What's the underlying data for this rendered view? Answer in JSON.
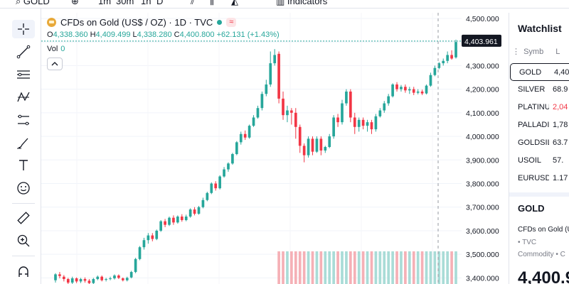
{
  "topbar": {
    "search": "GOLD",
    "intervals": [
      "1m",
      "30m",
      "1h",
      "D"
    ],
    "indicators": "Indicators"
  },
  "chart": {
    "title": "CFDs on Gold (US$ / OZ) · 1D · TVC",
    "open_label": "O",
    "open": "4,338.360",
    "high_label": "H",
    "high": "4,409.499",
    "low_label": "L",
    "low": "4,338.280",
    "close_label": "C",
    "close": "4,400.800",
    "change": "+62.131 (+1.43%)",
    "vol_label": "Vol",
    "vol_value": "0",
    "last_price_label": "4,403.961",
    "colors": {
      "up": "#26a69a",
      "down": "#f23645",
      "vol_up": "#a9dcd7",
      "vol_down": "#f5b0b6"
    }
  },
  "chart_data": {
    "type": "candlestick",
    "y_ticks": [
      "4,500.000",
      "4,400.000",
      "4,300.000",
      "4,200.000",
      "4,100.000",
      "4,000.000",
      "3,900.000",
      "3,800.000",
      "3,700.000",
      "3,600.000",
      "3,500.000",
      "3,400.000"
    ],
    "ylim": [
      3350,
      4530
    ],
    "last_price": 4403.961,
    "candles": [
      [
        3390,
        3415,
        3380,
        3420
      ],
      [
        3415,
        3408,
        3398,
        3425
      ],
      [
        3405,
        3395,
        3385,
        3412
      ],
      [
        3395,
        3380,
        3370,
        3400
      ],
      [
        3380,
        3398,
        3372,
        3405
      ],
      [
        3398,
        3385,
        3378,
        3402
      ],
      [
        3385,
        3395,
        3378,
        3400
      ],
      [
        3395,
        3388,
        3380,
        3402
      ],
      [
        3388,
        3378,
        3370,
        3395
      ],
      [
        3378,
        3395,
        3372,
        3400
      ],
      [
        3395,
        3405,
        3390,
        3410
      ],
      [
        3405,
        3390,
        3385,
        3410
      ],
      [
        3392,
        3395,
        3385,
        3400
      ],
      [
        3395,
        3398,
        3390,
        3405
      ],
      [
        3398,
        3410,
        3393,
        3415
      ],
      [
        3410,
        3400,
        3395,
        3415
      ],
      [
        3398,
        3390,
        3385,
        3402
      ],
      [
        3390,
        3400,
        3385,
        3405
      ],
      [
        3402,
        3425,
        3398,
        3430
      ],
      [
        3425,
        3480,
        3420,
        3485
      ],
      [
        3480,
        3530,
        3475,
        3535
      ],
      [
        3530,
        3560,
        3520,
        3570
      ],
      [
        3560,
        3580,
        3545,
        3590
      ],
      [
        3580,
        3565,
        3555,
        3590
      ],
      [
        3565,
        3600,
        3560,
        3605
      ],
      [
        3600,
        3640,
        3595,
        3645
      ],
      [
        3640,
        3625,
        3615,
        3650
      ],
      [
        3625,
        3655,
        3620,
        3660
      ],
      [
        3655,
        3635,
        3625,
        3665
      ],
      [
        3635,
        3660,
        3630,
        3665
      ],
      [
        3660,
        3645,
        3638,
        3670
      ],
      [
        3645,
        3660,
        3640,
        3668
      ],
      [
        3660,
        3690,
        3655,
        3695
      ],
      [
        3690,
        3672,
        3665,
        3700
      ],
      [
        3672,
        3700,
        3668,
        3705
      ],
      [
        3700,
        3730,
        3695,
        3740
      ],
      [
        3730,
        3760,
        3725,
        3765
      ],
      [
        3760,
        3800,
        3755,
        3805
      ],
      [
        3800,
        3780,
        3770,
        3810
      ],
      [
        3780,
        3830,
        3775,
        3835
      ],
      [
        3830,
        3860,
        3825,
        3870
      ],
      [
        3860,
        3885,
        3850,
        3890
      ],
      [
        3885,
        3925,
        3880,
        3930
      ],
      [
        3925,
        3975,
        3920,
        3980
      ],
      [
        3975,
        4010,
        3965,
        4020
      ],
      [
        4010,
        3995,
        3985,
        4025
      ],
      [
        3995,
        4045,
        3990,
        4050
      ],
      [
        4045,
        4080,
        4040,
        4090
      ],
      [
        4080,
        4120,
        4075,
        4130
      ],
      [
        4120,
        4180,
        4110,
        4190
      ],
      [
        4180,
        4220,
        4170,
        4240
      ],
      [
        4220,
        4310,
        4210,
        4360
      ],
      [
        4310,
        4345,
        4300,
        4370
      ],
      [
        4350,
        4160,
        4140,
        4360
      ],
      [
        4160,
        4090,
        4070,
        4190
      ],
      [
        4090,
        4110,
        4060,
        4130
      ],
      [
        4110,
        4100,
        4050,
        4120
      ],
      [
        4100,
        4040,
        3990,
        4120
      ],
      [
        4040,
        3960,
        3930,
        4050
      ],
      [
        3960,
        3920,
        3890,
        3970
      ],
      [
        3920,
        3990,
        3910,
        4000
      ],
      [
        3990,
        3935,
        3920,
        4000
      ],
      [
        3935,
        3990,
        3930,
        4000
      ],
      [
        3990,
        3940,
        3920,
        4000
      ],
      [
        3940,
        3955,
        3930,
        3960
      ],
      [
        3955,
        4000,
        3950,
        4010
      ],
      [
        4000,
        4080,
        3990,
        4090
      ],
      [
        4080,
        4060,
        4040,
        4095
      ],
      [
        4060,
        4140,
        4050,
        4155
      ],
      [
        4140,
        4190,
        4130,
        4200
      ],
      [
        4190,
        4080,
        4060,
        4200
      ],
      [
        4080,
        4040,
        4010,
        4100
      ],
      [
        4040,
        4070,
        4020,
        4080
      ],
      [
        4070,
        4045,
        4030,
        4080
      ],
      [
        4045,
        4060,
        4020,
        4070
      ],
      [
        4060,
        4030,
        4010,
        4070
      ],
      [
        4030,
        4085,
        4020,
        4095
      ],
      [
        4085,
        4110,
        4080,
        4120
      ],
      [
        4110,
        4140,
        4100,
        4150
      ],
      [
        4140,
        4170,
        4130,
        4180
      ],
      [
        4170,
        4220,
        4165,
        4225
      ],
      [
        4220,
        4200,
        4190,
        4230
      ],
      [
        4200,
        4210,
        4190,
        4218
      ],
      [
        4210,
        4195,
        4185,
        4220
      ],
      [
        4195,
        4200,
        4180,
        4210
      ],
      [
        4200,
        4185,
        4175,
        4210
      ],
      [
        4185,
        4190,
        4178,
        4200
      ],
      [
        4190,
        4182,
        4175,
        4198
      ],
      [
        4182,
        4215,
        4178,
        4220
      ],
      [
        4215,
        4260,
        4210,
        4270
      ],
      [
        4260,
        4290,
        4255,
        4300
      ],
      [
        4290,
        4310,
        4285,
        4315
      ],
      [
        4310,
        4320,
        4300,
        4330
      ],
      [
        4320,
        4345,
        4310,
        4360
      ],
      [
        4345,
        4330,
        4325,
        4365
      ],
      [
        4335,
        4400,
        4330,
        4410
      ]
    ]
  },
  "watchlist": {
    "title": "Watchlist",
    "col_symbol": "Symb",
    "col_last": "L",
    "items": [
      {
        "symbol": "GOLD",
        "last": "4,40",
        "down": false
      },
      {
        "symbol": "SILVER",
        "last": "68.9",
        "down": false
      },
      {
        "symbol": "PLATINUM",
        "last": "2,04",
        "down": true
      },
      {
        "symbol": "PALLADIUM",
        "last": "1,78",
        "down": false
      },
      {
        "symbol": "GOLDSILVER",
        "last": "63.7",
        "down": false
      },
      {
        "symbol": "USOIL",
        "last": "57.",
        "down": false
      },
      {
        "symbol": "EURUSD",
        "last": "1.17",
        "down": false
      }
    ]
  },
  "details": {
    "symbol": "GOLD",
    "name": "CFDs on Gold (U",
    "exchange": "• TVC",
    "category": "Commodity • C",
    "price": "4,400.9"
  }
}
